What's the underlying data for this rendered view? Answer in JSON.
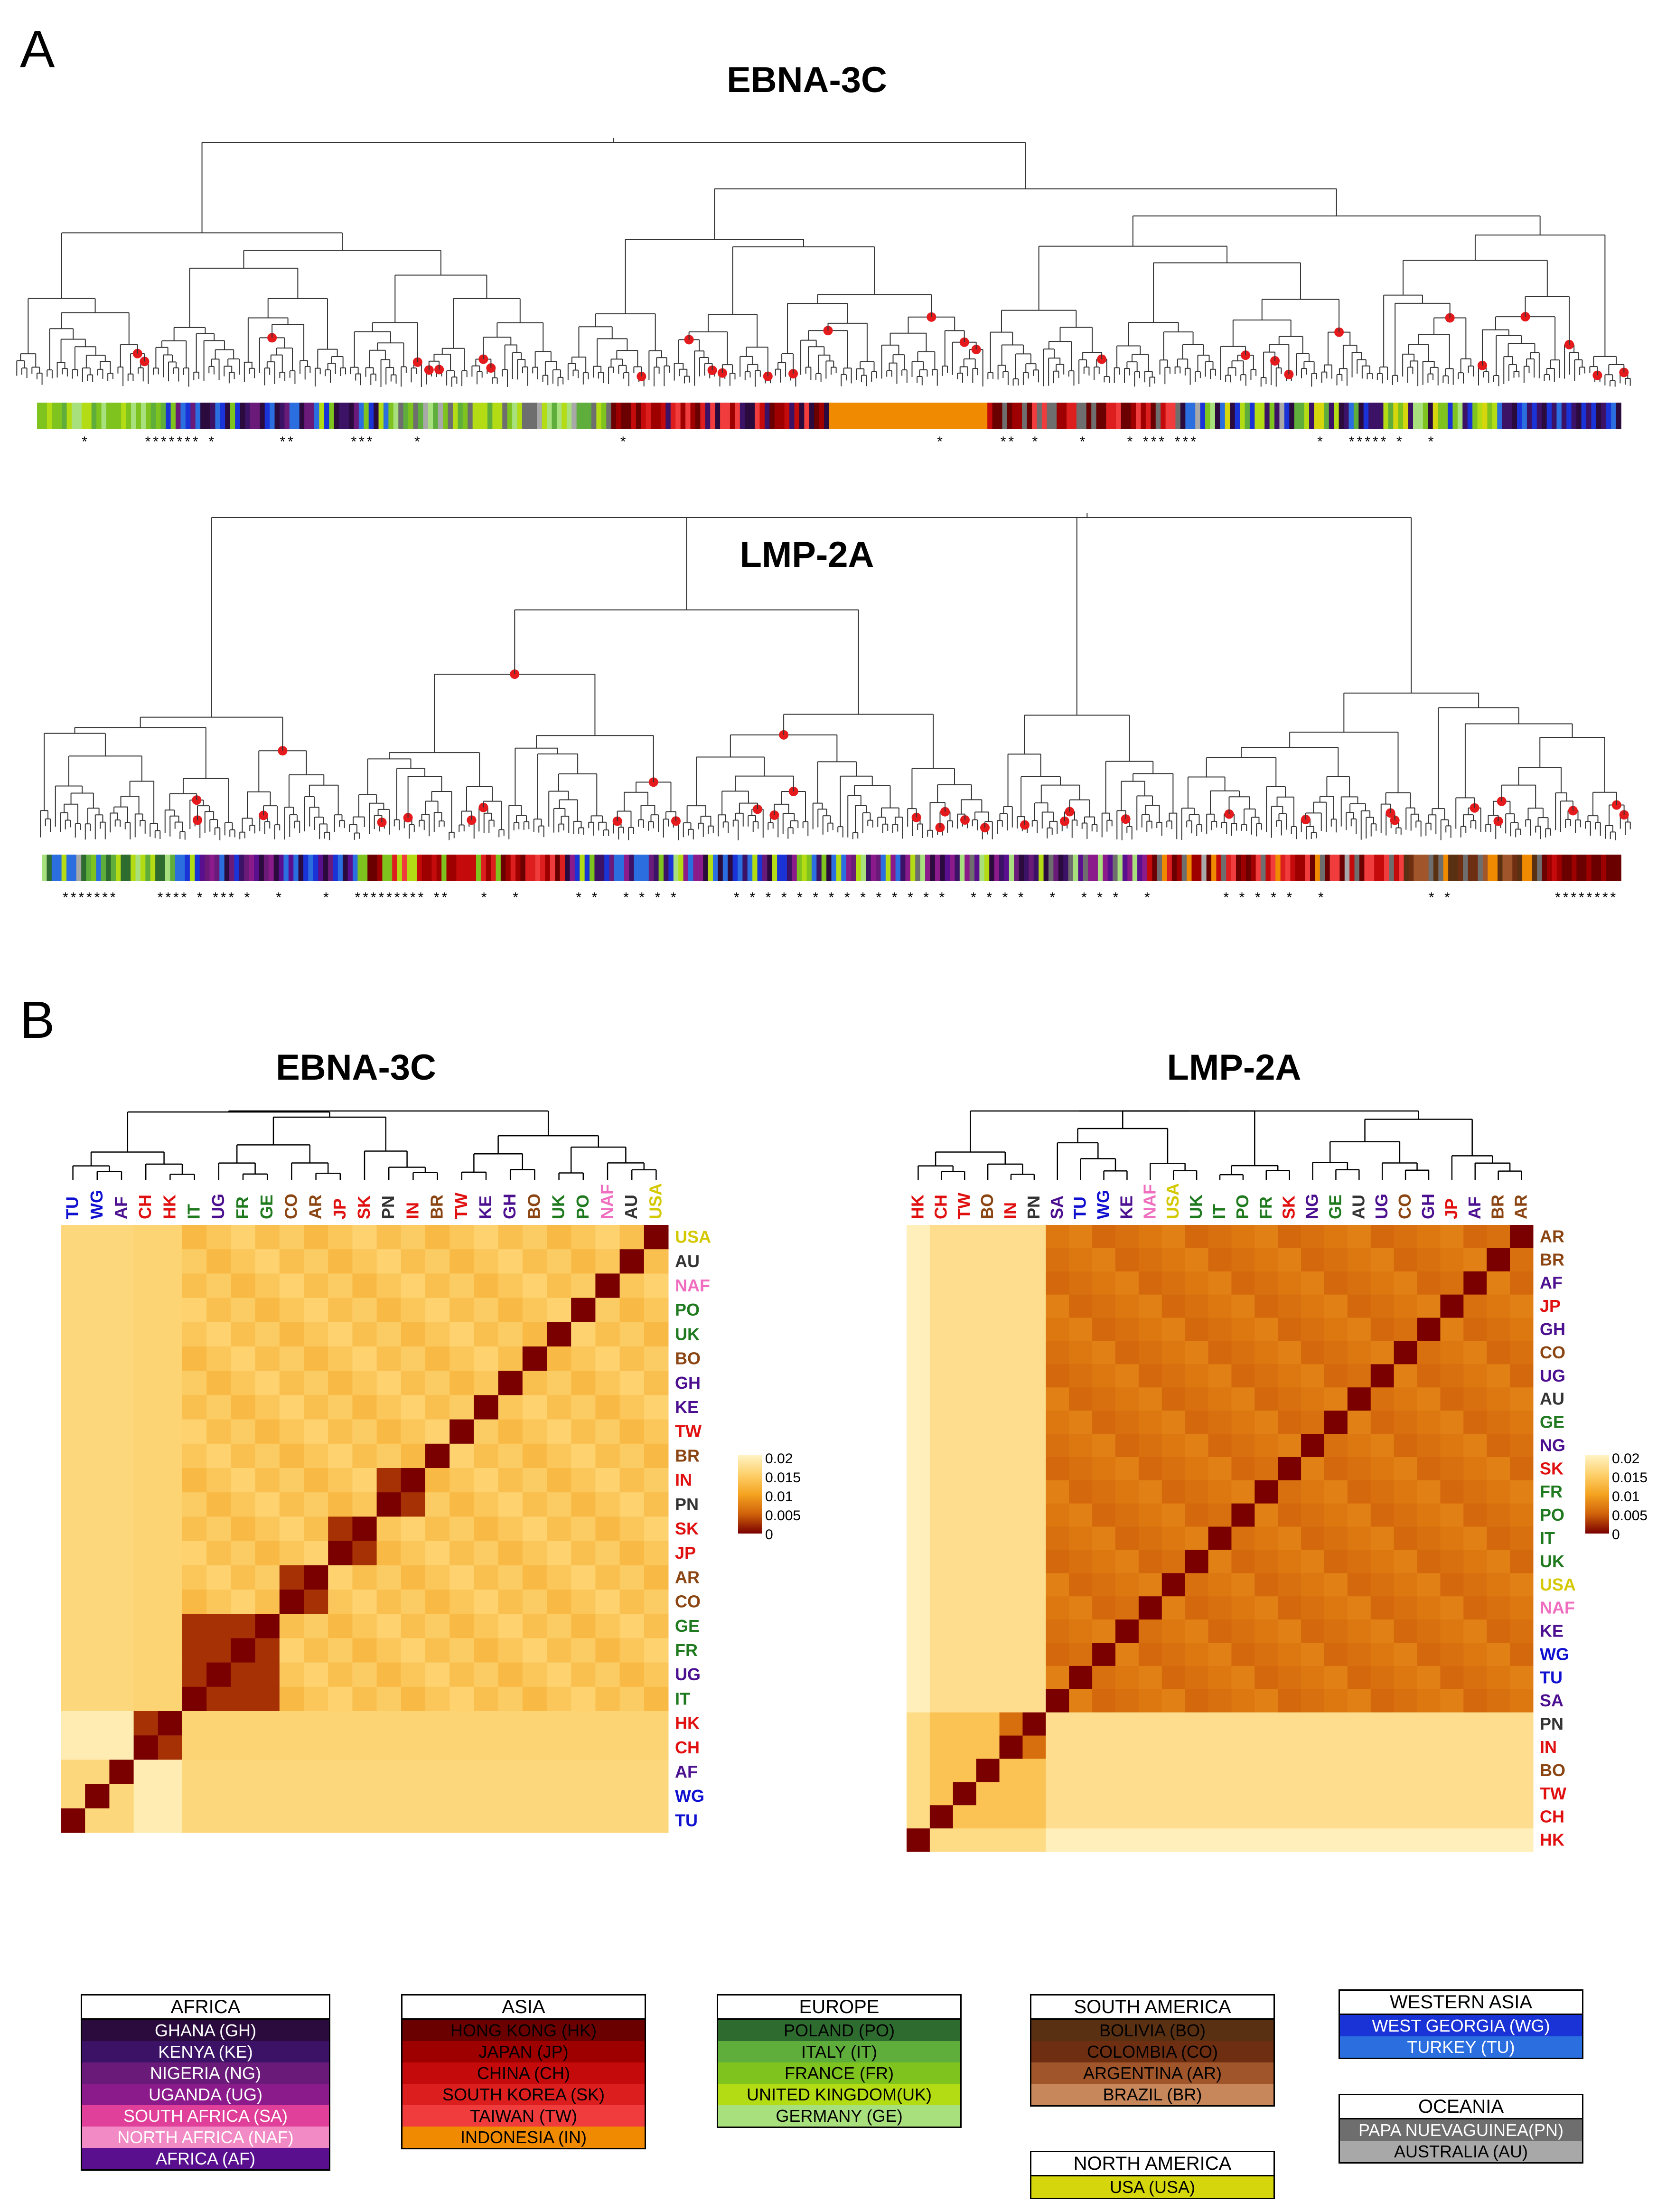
{
  "panel_a_label": "A",
  "panel_b_label": "B",
  "tree_ebna_title": "EBNA-3C",
  "tree_lmp_title": "LMP-2A",
  "heat_ebna_title": "EBNA-3C",
  "heat_lmp_title": "LMP-2A",
  "colors": {
    "GH": "#2b0a3d",
    "KE": "#3b1266",
    "NG": "#6a1b7a",
    "UG": "#8b1a8b",
    "SA": "#e0409a",
    "NAF": "#f28ac6",
    "AF": "#5a0f8f",
    "HK": "#6b0000",
    "JP": "#9e0000",
    "CH": "#c40a0a",
    "SK": "#dd1e1e",
    "TW": "#f03c3c",
    "IN": "#f08a00",
    "PO": "#2e6b2e",
    "IT": "#5fae3c",
    "FR": "#7ec31e",
    "UK": "#b4dc14",
    "GE": "#a9e07e",
    "BO": "#5a3012",
    "CO": "#6e2e12",
    "AR": "#a0562a",
    "BR": "#c8875a",
    "WG": "#1a33d6",
    "TU": "#2a6ee0",
    "PN": "#6e6e6e",
    "AU": "#a8a8a8",
    "USA": "#d6d60c"
  },
  "label_colors": {
    "TU": "#1010d0",
    "WG": "#1010d0",
    "AF": "#4b0f8f",
    "CH": "#e01010",
    "HK": "#e01010",
    "IT": "#1f7a1f",
    "UG": "#4b0f8f",
    "FR": "#1f7a1f",
    "GE": "#1f7a1f",
    "CO": "#8b4513",
    "AR": "#8b4513",
    "JP": "#e01010",
    "SK": "#e01010",
    "PN": "#333333",
    "IN": "#e01010",
    "BR": "#8b4513",
    "TW": "#e01010",
    "KE": "#4b0f8f",
    "GH": "#4b0f8f",
    "BO": "#8b4513",
    "UK": "#1f7a1f",
    "PO": "#1f7a1f",
    "NAF": "#f06ec0",
    "AU": "#333333",
    "USA": "#d4c800",
    "SA": "#4b0f8f",
    "NG": "#4b0f8f"
  },
  "heat_ebna": {
    "columns": [
      "TU",
      "WG",
      "AF",
      "CH",
      "HK",
      "IT",
      "UG",
      "FR",
      "GE",
      "CO",
      "AR",
      "JP",
      "SK",
      "PN",
      "IN",
      "BR",
      "TW",
      "KE",
      "GH",
      "BO",
      "UK",
      "PO",
      "NAF",
      "AU",
      "USA"
    ],
    "rows": [
      "USA",
      "AU",
      "NAF",
      "PO",
      "UK",
      "BO",
      "GH",
      "KE",
      "TW",
      "BR",
      "IN",
      "PN",
      "SK",
      "JP",
      "AR",
      "CO",
      "GE",
      "FR",
      "UG",
      "IT",
      "HK",
      "CH",
      "AF",
      "WG",
      "TU"
    ]
  },
  "heat_lmp": {
    "columns": [
      "HK",
      "CH",
      "TW",
      "BO",
      "IN",
      "PN",
      "SA",
      "TU",
      "WG",
      "KE",
      "NAF",
      "USA",
      "UK",
      "IT",
      "PO",
      "FR",
      "SK",
      "NG",
      "GE",
      "AU",
      "UG",
      "CO",
      "GH",
      "JP",
      "AF",
      "BR",
      "AR"
    ],
    "rows": [
      "AR",
      "BR",
      "AF",
      "JP",
      "GH",
      "CO",
      "UG",
      "AU",
      "GE",
      "NG",
      "SK",
      "FR",
      "PO",
      "IT",
      "UK",
      "USA",
      "NAF",
      "KE",
      "WG",
      "TU",
      "SA",
      "PN",
      "IN",
      "BO",
      "TW",
      "CH",
      "HK"
    ]
  },
  "colorbar": {
    "ticks": [
      "0.02",
      "0.015",
      "0.01",
      "0.005",
      "0"
    ]
  },
  "legend": {
    "africa": {
      "title": "AFRICA",
      "items": [
        {
          "label": "GHANA (GH)",
          "code": "GH"
        },
        {
          "label": "KENYA (KE)",
          "code": "KE"
        },
        {
          "label": "NIGERIA (NG)",
          "code": "NG"
        },
        {
          "label": "UGANDA (UG)",
          "code": "UG"
        },
        {
          "label": "SOUTH AFRICA (SA)",
          "code": "SA"
        },
        {
          "label": "NORTH AFRICA (NAF)",
          "code": "NAF"
        },
        {
          "label": "AFRICA (AF)",
          "code": "AF"
        }
      ]
    },
    "asia": {
      "title": "ASIA",
      "items": [
        {
          "label": "HONG KONG  (HK)",
          "code": "HK"
        },
        {
          "label": "JAPAN  (JP)",
          "code": "JP"
        },
        {
          "label": "CHINA  (CH)",
          "code": "CH"
        },
        {
          "label": "SOUTH KOREA  (SK)",
          "code": "SK"
        },
        {
          "label": "TAIWAN  (TW)",
          "code": "TW"
        },
        {
          "label": "INDONESIA (IN)",
          "code": "IN"
        }
      ]
    },
    "europe": {
      "title": "EUROPE",
      "items": [
        {
          "label": "POLAND (PO)",
          "code": "PO"
        },
        {
          "label": "ITALY (IT)",
          "code": "IT"
        },
        {
          "label": "FRANCE (FR)",
          "code": "FR"
        },
        {
          "label": "UNITED KINGDOM(UK)",
          "code": "UK"
        },
        {
          "label": "GERMANY (GE)",
          "code": "GE"
        }
      ]
    },
    "south_america": {
      "title": "SOUTH AMERICA",
      "items": [
        {
          "label": "BOLIVIA  (BO)",
          "code": "BO"
        },
        {
          "label": "COLOMBIA (CO)",
          "code": "CO"
        },
        {
          "label": "ARGENTINA (AR)",
          "code": "AR"
        },
        {
          "label": "BRAZIL (BR)",
          "code": "BR"
        }
      ]
    },
    "western_asia": {
      "title": "WESTERN ASIA",
      "items": [
        {
          "label": "WEST GEORGIA (WG)",
          "code": "WG"
        },
        {
          "label": "TURKEY (TU)",
          "code": "TU"
        }
      ]
    },
    "oceania": {
      "title": "OCEANIA",
      "items": [
        {
          "label": "PAPA NUEVAGUINEA(PN)",
          "code": "PN"
        },
        {
          "label": "AUSTRALIA (AU)",
          "code": "AU"
        }
      ]
    },
    "north_america": {
      "title": "NORTH AMERICA",
      "items": [
        {
          "label": "USA     (USA)",
          "code": "USA"
        }
      ]
    }
  }
}
